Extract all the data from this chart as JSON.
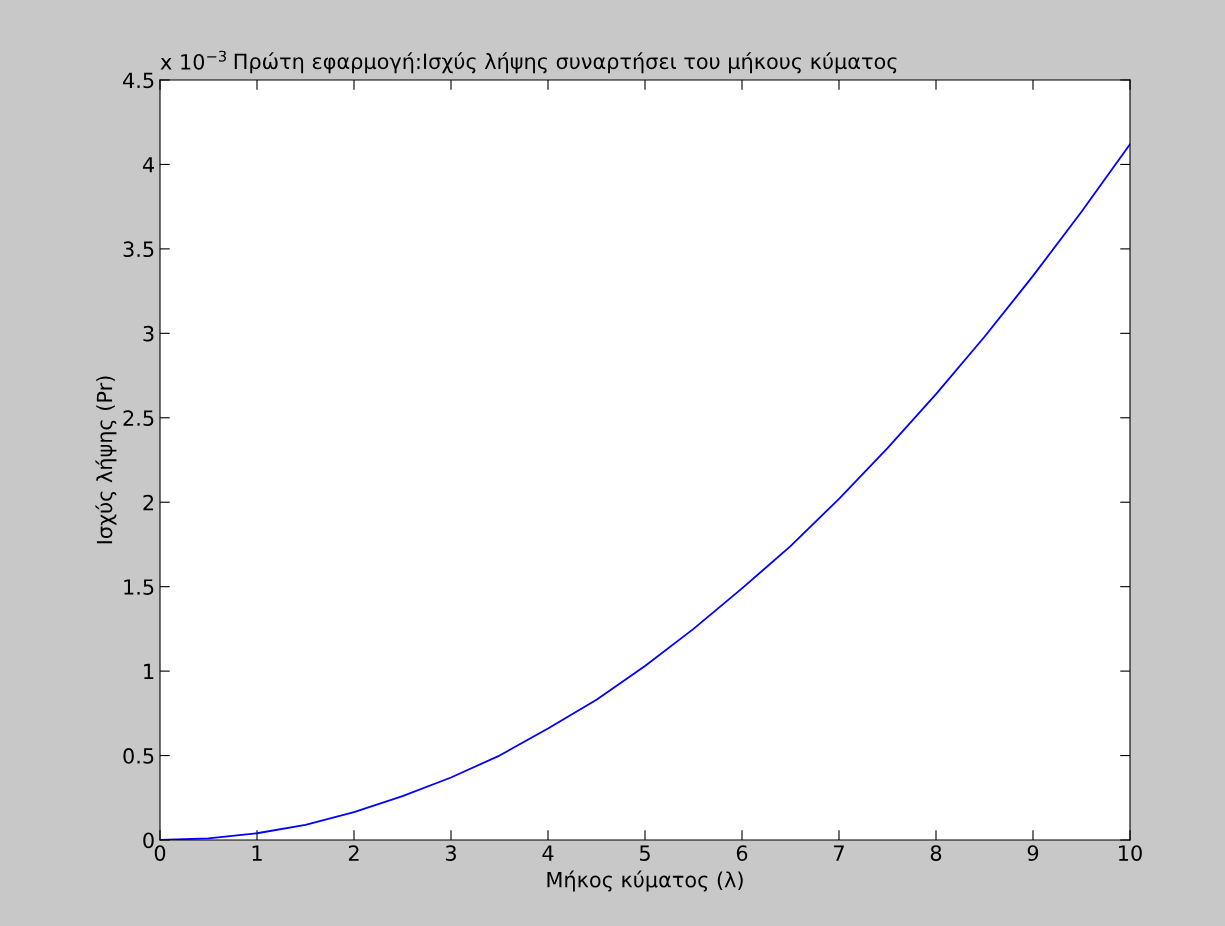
{
  "chart_data": {
    "type": "line",
    "title": "Πρώτη εφαρμογή:Ισχύς λήψης συναρτήσει του μήκους κύματος",
    "xlabel": "Μήκος κύματος (λ)",
    "ylabel": "Ισχύς λήψης (Pr)",
    "annotations": [
      "x 10$^{−3}$"
    ],
    "x": [
      0,
      0.5,
      1,
      1.5,
      2,
      2.5,
      3,
      3.5,
      4,
      4.5,
      5,
      5.5,
      6,
      6.5,
      7,
      7.5,
      8,
      8.5,
      9,
      9.5,
      10
    ],
    "series": [
      {
        "color": "#0000ff",
        "values": [
          0,
          0.01,
          0.04,
          0.09,
          0.165,
          0.26,
          0.37,
          0.5,
          0.66,
          0.83,
          1.03,
          1.25,
          1.49,
          1.74,
          2.02,
          2.32,
          2.64,
          2.98,
          3.34,
          3.72,
          4.12
        ]
      }
    ],
    "xlim": [
      0,
      10
    ],
    "xticks": [
      0,
      1,
      2,
      3,
      4,
      5,
      6,
      7,
      8,
      9,
      10
    ],
    "ylim": [
      0,
      4.5
    ],
    "yticks": [
      0,
      0.5,
      1,
      1.5,
      2,
      2.5,
      3,
      3.5,
      4,
      4.5
    ],
    "grid": false,
    "legend": false,
    "marker": "none",
    "line_style": "solid"
  }
}
